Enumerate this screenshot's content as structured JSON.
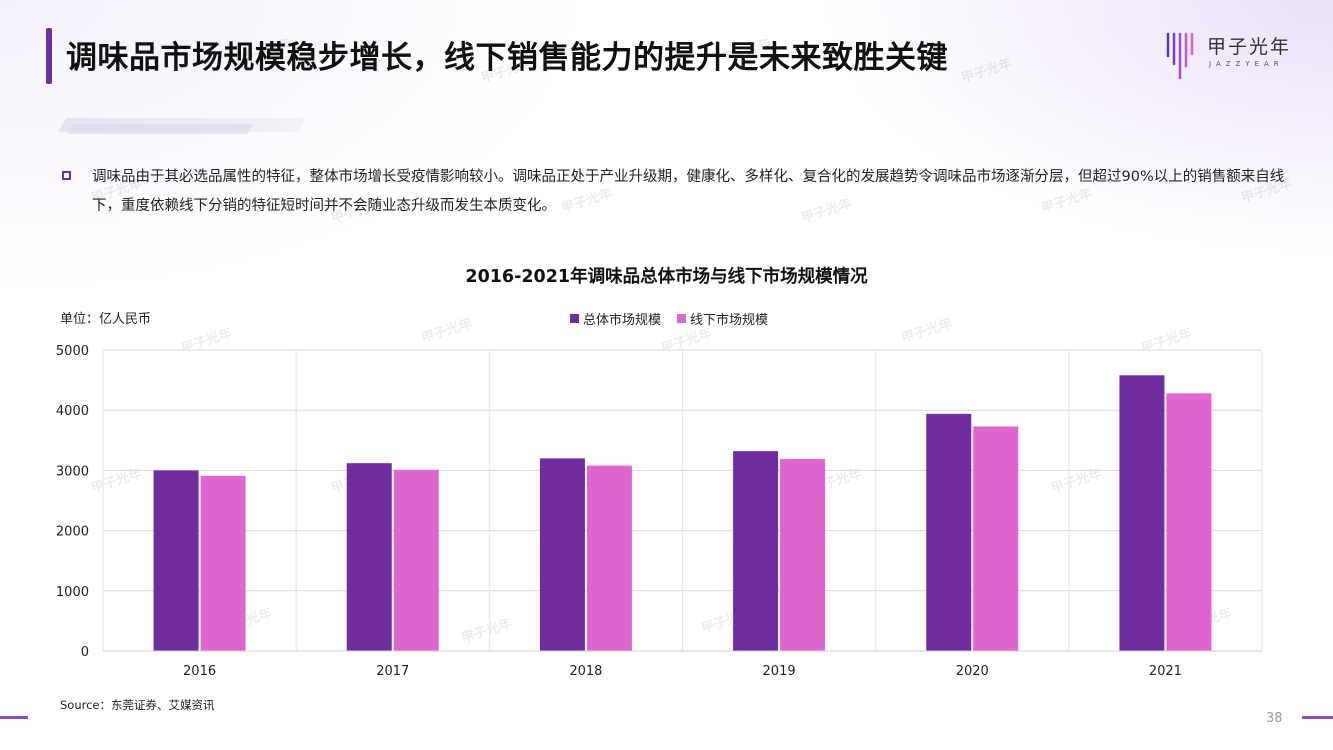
{
  "header": {
    "title": "调味品市场规模稳步增长，线下销售能力的提升是未来致胜关键",
    "logo_text": "甲子光年",
    "logo_subtext": "JAZZYEAR"
  },
  "bullet": {
    "text": "调味品由于其必选品属性的特征，整体市场增长受疫情影响较小。调味品正处于产业升级期，健康化、多样化、复合化的发展趋势令调味品市场逐渐分层，但超过90%以上的销售额来自线下，重度依赖线下分销的特征短时间并不会随业态升级而发生本质变化。"
  },
  "chart_data": {
    "type": "bar",
    "title": "2016-2021年调味品总体市场与线下市场规模情况",
    "unit_label": "单位：亿人民币",
    "categories": [
      "2016",
      "2017",
      "2018",
      "2019",
      "2020",
      "2021"
    ],
    "series": [
      {
        "name": "总体市场规模",
        "color": "#6f2d9e",
        "values": [
          3000,
          3120,
          3200,
          3320,
          3940,
          4580
        ]
      },
      {
        "name": "线下市场规模",
        "color": "#e066cf",
        "values": [
          2910,
          3010,
          3080,
          3190,
          3730,
          4280
        ]
      }
    ],
    "ylim": [
      0,
      5000
    ],
    "yticks": [
      0,
      1000,
      2000,
      3000,
      4000,
      5000
    ],
    "grid": true,
    "legend_position": "top-center"
  },
  "footer": {
    "source": "Source：东莞证券、艾媒资讯",
    "page_number": "38"
  },
  "watermark_text": "甲子光年"
}
